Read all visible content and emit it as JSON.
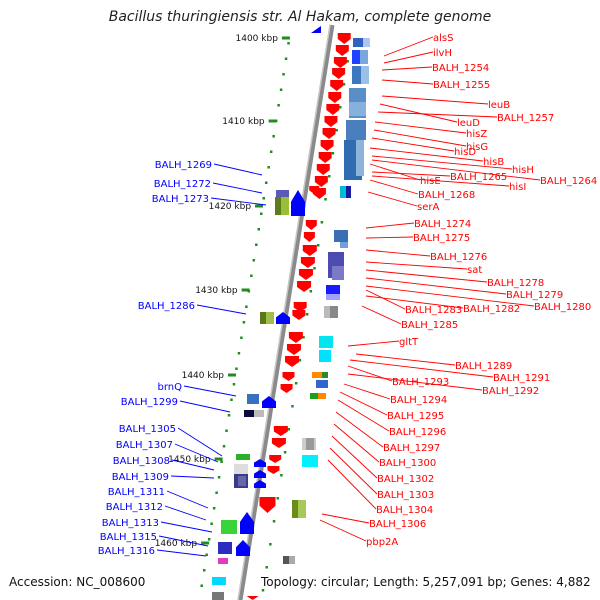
{
  "title": "Bacillus thuringiensis str. Al Hakam, complete genome",
  "footer": {
    "accession": "Accession: NC_008600",
    "topology": "Topology: circular; Length: 5,257,091 bp; Genes: 4,882"
  },
  "colors": {
    "forward_strand": "#ff0000",
    "reverse_strand": "#0000ff",
    "backbone": "#999999",
    "ticks": "#228b22"
  },
  "scale_ticks": [
    {
      "label": "1400 kbp"
    },
    {
      "label": "1410 kbp"
    },
    {
      "label": "1420 kbp"
    },
    {
      "label": "1430 kbp"
    },
    {
      "label": "1440 kbp"
    },
    {
      "label": "1450 kbp"
    },
    {
      "label": "1460 kbp"
    }
  ],
  "labels_forward": [
    "alsS",
    "ilvH",
    "BALH_1254",
    "BALH_1255",
    "leuB",
    "leuD",
    "BALH_1257",
    "hisZ",
    "hisG",
    "hisD",
    "hisB",
    "hisH",
    "hisE",
    "BALH_1265",
    "BALH_1264",
    "hisI",
    "BALH_1268",
    "serA",
    "BALH_1274",
    "BALH_1275",
    "BALH_1276",
    "sat",
    "BALH_1278",
    "BALH_1279",
    "BALH_1283",
    "BALH_1282",
    "BALH_1280",
    "BALH_1285",
    "gltT",
    "BALH_1289",
    "BALH_1291",
    "BALH_1293",
    "BALH_1292",
    "BALH_1294",
    "BALH_1295",
    "BALH_1296",
    "BALH_1297",
    "BALH_1300",
    "BALH_1302",
    "BALH_1303",
    "BALH_1304",
    "BALH_1306",
    "pbp2A"
  ],
  "labels_reverse": [
    "BALH_1269",
    "BALH_1272",
    "BALH_1273",
    "BALH_1286",
    "brnQ",
    "BALH_1299",
    "BALH_1305",
    "BALH_1307",
    "BALH_1308",
    "BALH_1309",
    "BALH_1311",
    "BALH_1312",
    "BALH_1313",
    "BALH_1315",
    "BALH_1316"
  ]
}
